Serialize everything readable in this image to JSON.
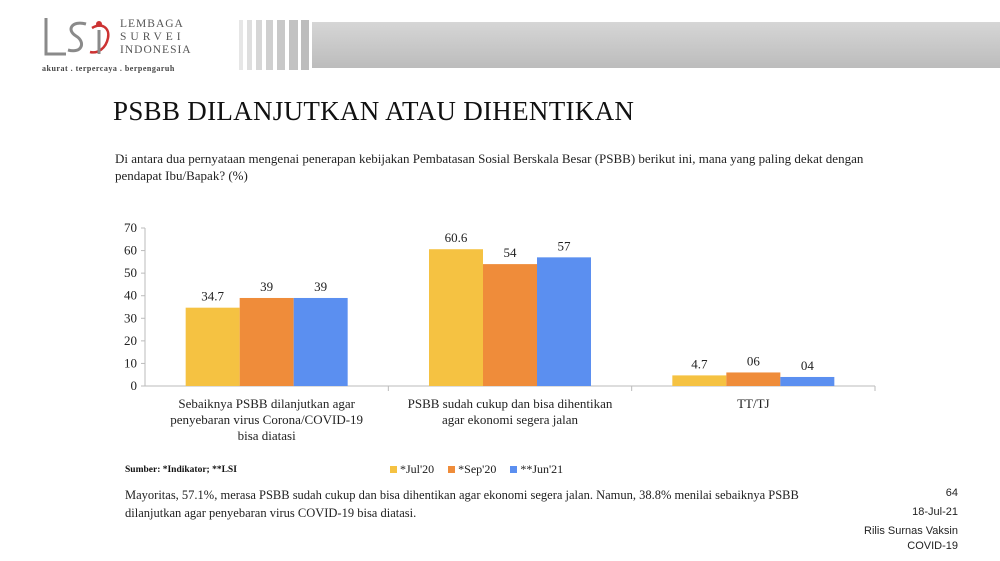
{
  "header": {
    "logo_line1": "LEMBAGA",
    "logo_line2": "SURVEI",
    "logo_line3": "INDONESIA",
    "tagline": "akurat . terpercaya . berpengaruh"
  },
  "title": "PSBB DILANJUTKAN ATAU DIHENTIKAN",
  "subtitle": "Di antara dua pernyataan mengenai penerapan kebijakan Pembatasan Sosial Berskala Besar (PSBB) berikut ini, mana yang paling dekat dengan pendapat Ibu/Bapak? (%)",
  "chart_data": {
    "type": "bar",
    "categories": [
      [
        "Sebaiknya PSBB dilanjutkan agar",
        "penyebaran virus Corona/COVID-19",
        "bisa diatasi"
      ],
      [
        "PSBB sudah cukup dan bisa dihentikan",
        "agar ekonomi segera jalan"
      ],
      [
        "TT/TJ"
      ]
    ],
    "series": [
      {
        "name": "*Jul'20",
        "color": "#f5c242",
        "values": [
          34.7,
          60.6,
          4.7
        ],
        "labels": [
          "34.7",
          "60.6",
          "4.7"
        ]
      },
      {
        "name": "*Sep'20",
        "color": "#ef8c3a",
        "values": [
          39,
          54,
          6
        ],
        "labels": [
          "39",
          "54",
          "06"
        ]
      },
      {
        "name": "**Jun'21",
        "color": "#5b8ff0",
        "values": [
          39,
          57,
          4
        ],
        "labels": [
          "39",
          "57",
          "04"
        ]
      }
    ],
    "ylim": [
      0,
      70
    ],
    "yticks": [
      0,
      10,
      20,
      30,
      40,
      50,
      60,
      70
    ],
    "grid": false,
    "legend_position": "bottom"
  },
  "source": "Sumber: *Indikator; **LSI",
  "note": "Mayoritas, 57.1%, merasa PSBB sudah cukup dan bisa dihentikan agar ekonomi segera jalan. Namun, 38.8% menilai sebaiknya PSBB dilanjutkan agar penyebaran virus COVID-19 bisa diatasi.",
  "page_number": "64",
  "date": "18-Jul-21",
  "footer_line1": "Rilis Surnas Vaksin",
  "footer_line2": "COVID-19"
}
